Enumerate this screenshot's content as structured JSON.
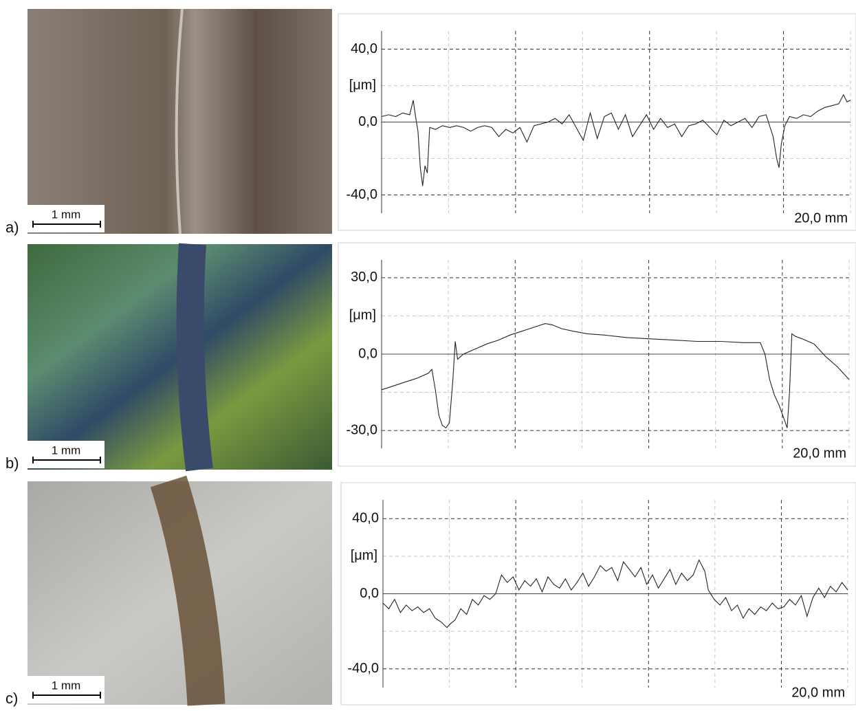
{
  "panels": [
    {
      "label": "a)",
      "scale_bar": "1 mm"
    },
    {
      "label": "b)",
      "scale_bar": "1 mm"
    },
    {
      "label": "c)",
      "scale_bar": "1 mm"
    }
  ],
  "chart_data": [
    {
      "type": "line",
      "ylabel": "[μm]",
      "xlabel": "20,0 mm",
      "xlim": [
        0,
        20
      ],
      "ylim": [
        -50,
        50
      ],
      "yticks": [
        {
          "value": 40,
          "label": "40,0"
        },
        {
          "value": 0,
          "label": "0,0"
        },
        {
          "value": -40,
          "label": "-40,0"
        }
      ],
      "yminor": [
        20,
        -20
      ],
      "xgrid": 7,
      "grid": true,
      "color": "#222222",
      "x": [
        0,
        0.3,
        0.6,
        0.9,
        1.2,
        1.35,
        1.45,
        1.55,
        1.65,
        1.75,
        1.85,
        1.95,
        2.05,
        2.3,
        2.6,
        2.9,
        3.2,
        3.5,
        3.8,
        4.1,
        4.4,
        4.7,
        5.0,
        5.3,
        5.6,
        5.9,
        6.2,
        6.5,
        6.8,
        7.1,
        7.4,
        7.7,
        8.0,
        8.3,
        8.6,
        8.9,
        9.2,
        9.5,
        9.8,
        10.1,
        10.4,
        10.7,
        11.0,
        11.3,
        11.6,
        11.9,
        12.2,
        12.5,
        12.8,
        13.1,
        13.4,
        13.7,
        14.0,
        14.3,
        14.6,
        14.9,
        15.2,
        15.5,
        15.8,
        16.1,
        16.4,
        16.7,
        16.85,
        16.95,
        17.05,
        17.2,
        17.4,
        17.7,
        18.0,
        18.3,
        18.6,
        18.9,
        19.2,
        19.5,
        19.7,
        19.85,
        20
      ],
      "values": [
        3,
        4,
        3,
        5,
        4,
        12,
        3,
        -5,
        -25,
        -35,
        -24,
        -28,
        -3,
        -4,
        -2,
        -3,
        -2,
        -3,
        -5,
        -3,
        -2,
        -3,
        -8,
        -4,
        -6,
        -3,
        -11,
        -2,
        -1,
        0,
        2,
        -1,
        4,
        -3,
        -10,
        5,
        -9,
        3,
        5,
        -4,
        4,
        -8,
        -2,
        4,
        -4,
        2,
        -3,
        -1,
        -8,
        -2,
        -1,
        1,
        -3,
        -7,
        1,
        -2,
        0,
        2,
        -3,
        3,
        4,
        -8,
        -20,
        -25,
        -12,
        -2,
        3,
        2,
        4,
        3,
        6,
        8,
        9,
        10,
        15,
        11,
        12
      ]
    },
    {
      "type": "line",
      "ylabel": "[μm]",
      "xlabel": "20,0 mm",
      "xlim": [
        0,
        20
      ],
      "ylim": [
        -37,
        37
      ],
      "yticks": [
        {
          "value": 30,
          "label": "30,0"
        },
        {
          "value": 0,
          "label": "0,0"
        },
        {
          "value": -30,
          "label": "-30,0"
        }
      ],
      "yminor": [
        15,
        -15
      ],
      "xgrid": 7,
      "grid": true,
      "color": "#222222",
      "x": [
        0,
        0.5,
        1.0,
        1.5,
        2.0,
        2.15,
        2.3,
        2.45,
        2.6,
        2.75,
        2.9,
        3.05,
        3.15,
        3.25,
        3.5,
        4.0,
        4.5,
        5.0,
        5.5,
        6.0,
        6.5,
        7.0,
        7.3,
        7.7,
        8.2,
        8.8,
        9.5,
        10.5,
        11.5,
        12.5,
        13.5,
        14.5,
        15.5,
        16.2,
        16.4,
        16.6,
        16.8,
        17.0,
        17.2,
        17.35,
        17.45,
        17.55,
        17.7,
        18.0,
        18.5,
        19.0,
        19.5,
        20
      ],
      "values": [
        -14,
        -12.5,
        -11,
        -9.5,
        -7.5,
        -6,
        -14,
        -24,
        -28,
        -29,
        -27,
        -10,
        5,
        -2,
        0,
        2,
        4,
        5.5,
        7.5,
        9,
        10.5,
        12,
        11.5,
        10,
        9,
        8,
        7.5,
        6.5,
        6,
        5.5,
        5,
        5,
        4.5,
        4.5,
        0,
        -10,
        -16,
        -20,
        -25,
        -29,
        -15,
        8,
        7,
        6,
        4,
        -1,
        -5,
        -10
      ]
    },
    {
      "type": "line",
      "ylabel": "[μm]",
      "xlabel": "20,0 mm",
      "xlim": [
        0,
        20
      ],
      "ylim": [
        -50,
        50
      ],
      "yticks": [
        {
          "value": 40,
          "label": "40,0"
        },
        {
          "value": 0,
          "label": "0,0"
        },
        {
          "value": -40,
          "label": "-40,0"
        }
      ],
      "yminor": [
        20,
        -20
      ],
      "xgrid": 7,
      "grid": true,
      "color": "#222222",
      "x": [
        0,
        0.25,
        0.5,
        0.75,
        1.0,
        1.25,
        1.5,
        1.75,
        2.0,
        2.25,
        2.5,
        2.75,
        2.9,
        3.1,
        3.35,
        3.6,
        3.85,
        4.1,
        4.35,
        4.6,
        4.85,
        5.1,
        5.35,
        5.6,
        5.85,
        6.1,
        6.35,
        6.6,
        6.85,
        7.1,
        7.35,
        7.6,
        7.85,
        8.1,
        8.35,
        8.6,
        8.85,
        9.1,
        9.35,
        9.6,
        9.85,
        10.1,
        10.35,
        10.6,
        10.85,
        11.1,
        11.35,
        11.6,
        11.85,
        12.1,
        12.35,
        12.6,
        12.85,
        13.1,
        13.35,
        13.6,
        13.85,
        14.0,
        14.25,
        14.5,
        14.75,
        15.0,
        15.25,
        15.5,
        15.75,
        16.0,
        16.25,
        16.5,
        16.75,
        17.0,
        17.25,
        17.5,
        17.75,
        18.0,
        18.25,
        18.5,
        18.75,
        19.0,
        19.25,
        19.5,
        19.75,
        20
      ],
      "values": [
        -5,
        -8,
        -3,
        -10,
        -6,
        -9,
        -7,
        -10,
        -8,
        -13,
        -15,
        -18,
        -16,
        -14,
        -8,
        -11,
        -3,
        -6,
        -1,
        -3,
        0,
        10,
        6,
        9,
        2,
        7,
        4,
        8,
        1,
        9,
        5,
        3,
        8,
        2,
        6,
        11,
        4,
        9,
        15,
        12,
        14,
        7,
        17,
        13,
        9,
        14,
        5,
        10,
        3,
        8,
        13,
        5,
        11,
        7,
        10,
        18,
        12,
        2,
        -3,
        -6,
        -2,
        -9,
        -6,
        -13,
        -8,
        -11,
        -7,
        -9,
        -5,
        -8,
        -7,
        -3,
        -6,
        -1,
        -12,
        -2,
        3,
        -2,
        4,
        1,
        6,
        2
      ]
    }
  ]
}
